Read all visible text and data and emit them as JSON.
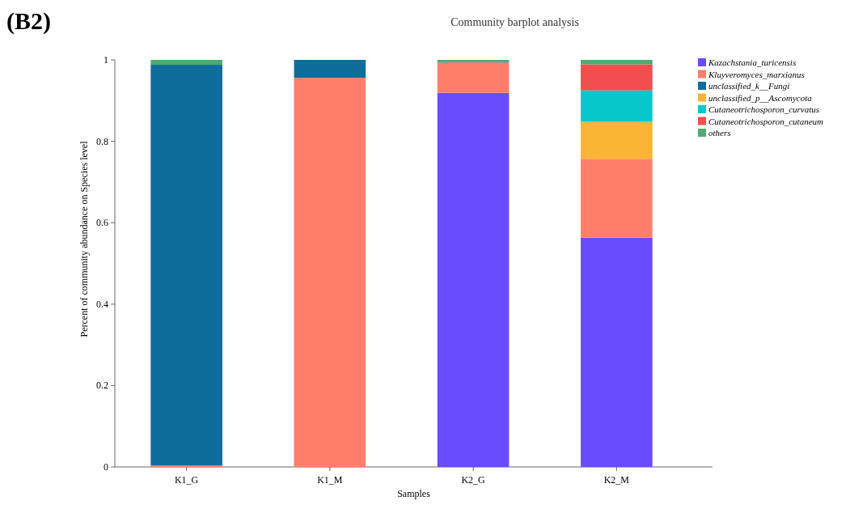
{
  "chart_data": {
    "type": "bar",
    "stacked": true,
    "title": "Community barplot analysis",
    "annotations": [
      "(B2)"
    ],
    "xlabel": "Samples",
    "ylabel": "Percent of community abundance on Species level",
    "categories": [
      "K1_G",
      "K1_M",
      "K2_G",
      "K2_M"
    ],
    "series": [
      {
        "name": "Kazachstania_turicensis",
        "color": "#6a4cff",
        "values": [
          0,
          0,
          0.919,
          0.563
        ]
      },
      {
        "name": "Kluyveromyces_marxianus",
        "color": "#ff7f6a",
        "values": [
          0.004,
          0.956,
          0.075,
          0.194
        ]
      },
      {
        "name": "unclassified_k__Fungi",
        "color": "#0f6d9c",
        "values": [
          0.984,
          0.044,
          0,
          0
        ]
      },
      {
        "name": "unclassified_p__Ascomycota",
        "color": "#fbb434",
        "values": [
          0,
          0,
          0,
          0.091
        ]
      },
      {
        "name": "Cutaneotrichosporon_curvatus",
        "color": "#07c7cc",
        "values": [
          0,
          0,
          0.002,
          0.077
        ]
      },
      {
        "name": "Cutaneotrichosporon_cutaneum",
        "color": "#f24e4e",
        "values": [
          0,
          0,
          0,
          0.064
        ]
      },
      {
        "name": "others",
        "color": "#4faa74",
        "values": [
          0.012,
          0,
          0.004,
          0.011
        ]
      }
    ],
    "ylim": [
      0,
      1
    ],
    "yticks": [
      0,
      0.2,
      0.4,
      0.6,
      0.8,
      1
    ],
    "legend": "top right",
    "grid": false
  }
}
